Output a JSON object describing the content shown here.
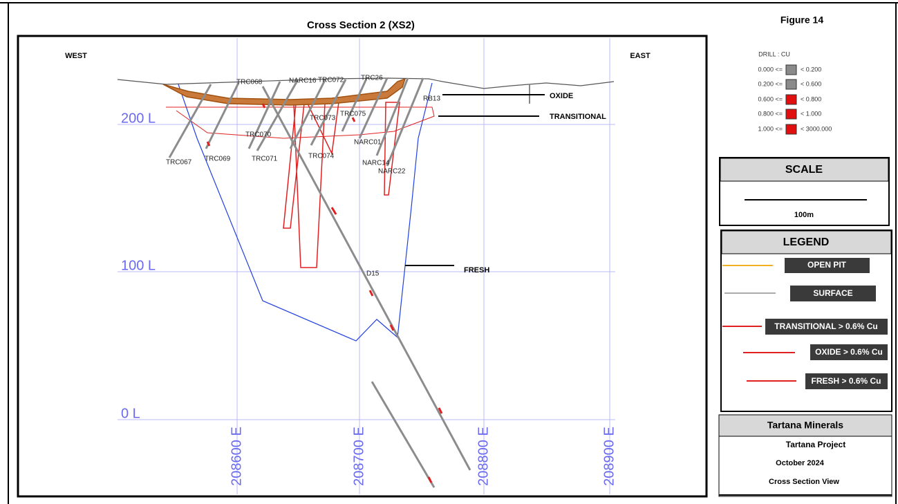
{
  "figure": "Figure 14",
  "section": {
    "title": "Cross Section 2 (XS2)",
    "west": "WEST",
    "east": "EAST",
    "levels": [
      "200 L",
      "100 L",
      "0 L"
    ],
    "eastings": [
      "208600 E",
      "208700 E",
      "208800 E",
      "208900 E"
    ],
    "holes": [
      "TRC068",
      "NARC16",
      "TRC072",
      "TRC26",
      "RB13",
      "TRC073",
      "TRC075",
      "TRC070",
      "NARC01",
      "TRC067",
      "TRC069",
      "TRC071",
      "TRC074",
      "NARC14",
      "NARC22",
      "D15"
    ],
    "zones": [
      "OXIDE",
      "TRANSITIONAL",
      "FRESH"
    ]
  },
  "drill_legend": {
    "title": "DRILL : CU",
    "rows": [
      [
        "0.000 <=",
        "< 0.200"
      ],
      [
        "0.200 <=",
        "< 0.600"
      ],
      [
        "0.600 <=",
        "< 0.800"
      ],
      [
        "0.800 <=",
        "< 1.000"
      ],
      [
        "1.000 <=",
        "< 3000.000"
      ]
    ]
  },
  "scale": {
    "title": "SCALE",
    "label": "100m"
  },
  "legend": {
    "title": "LEGEND",
    "items": [
      "OPEN PIT",
      "SURFACE",
      "TRANSITIONAL > 0.6% Cu",
      "OXIDE > 0.6% Cu",
      "FRESH > 0.6% Cu"
    ]
  },
  "info": {
    "company": "Tartana Minerals",
    "project": "Tartana Project",
    "date": "October  2024",
    "view": "Cross Section View"
  }
}
